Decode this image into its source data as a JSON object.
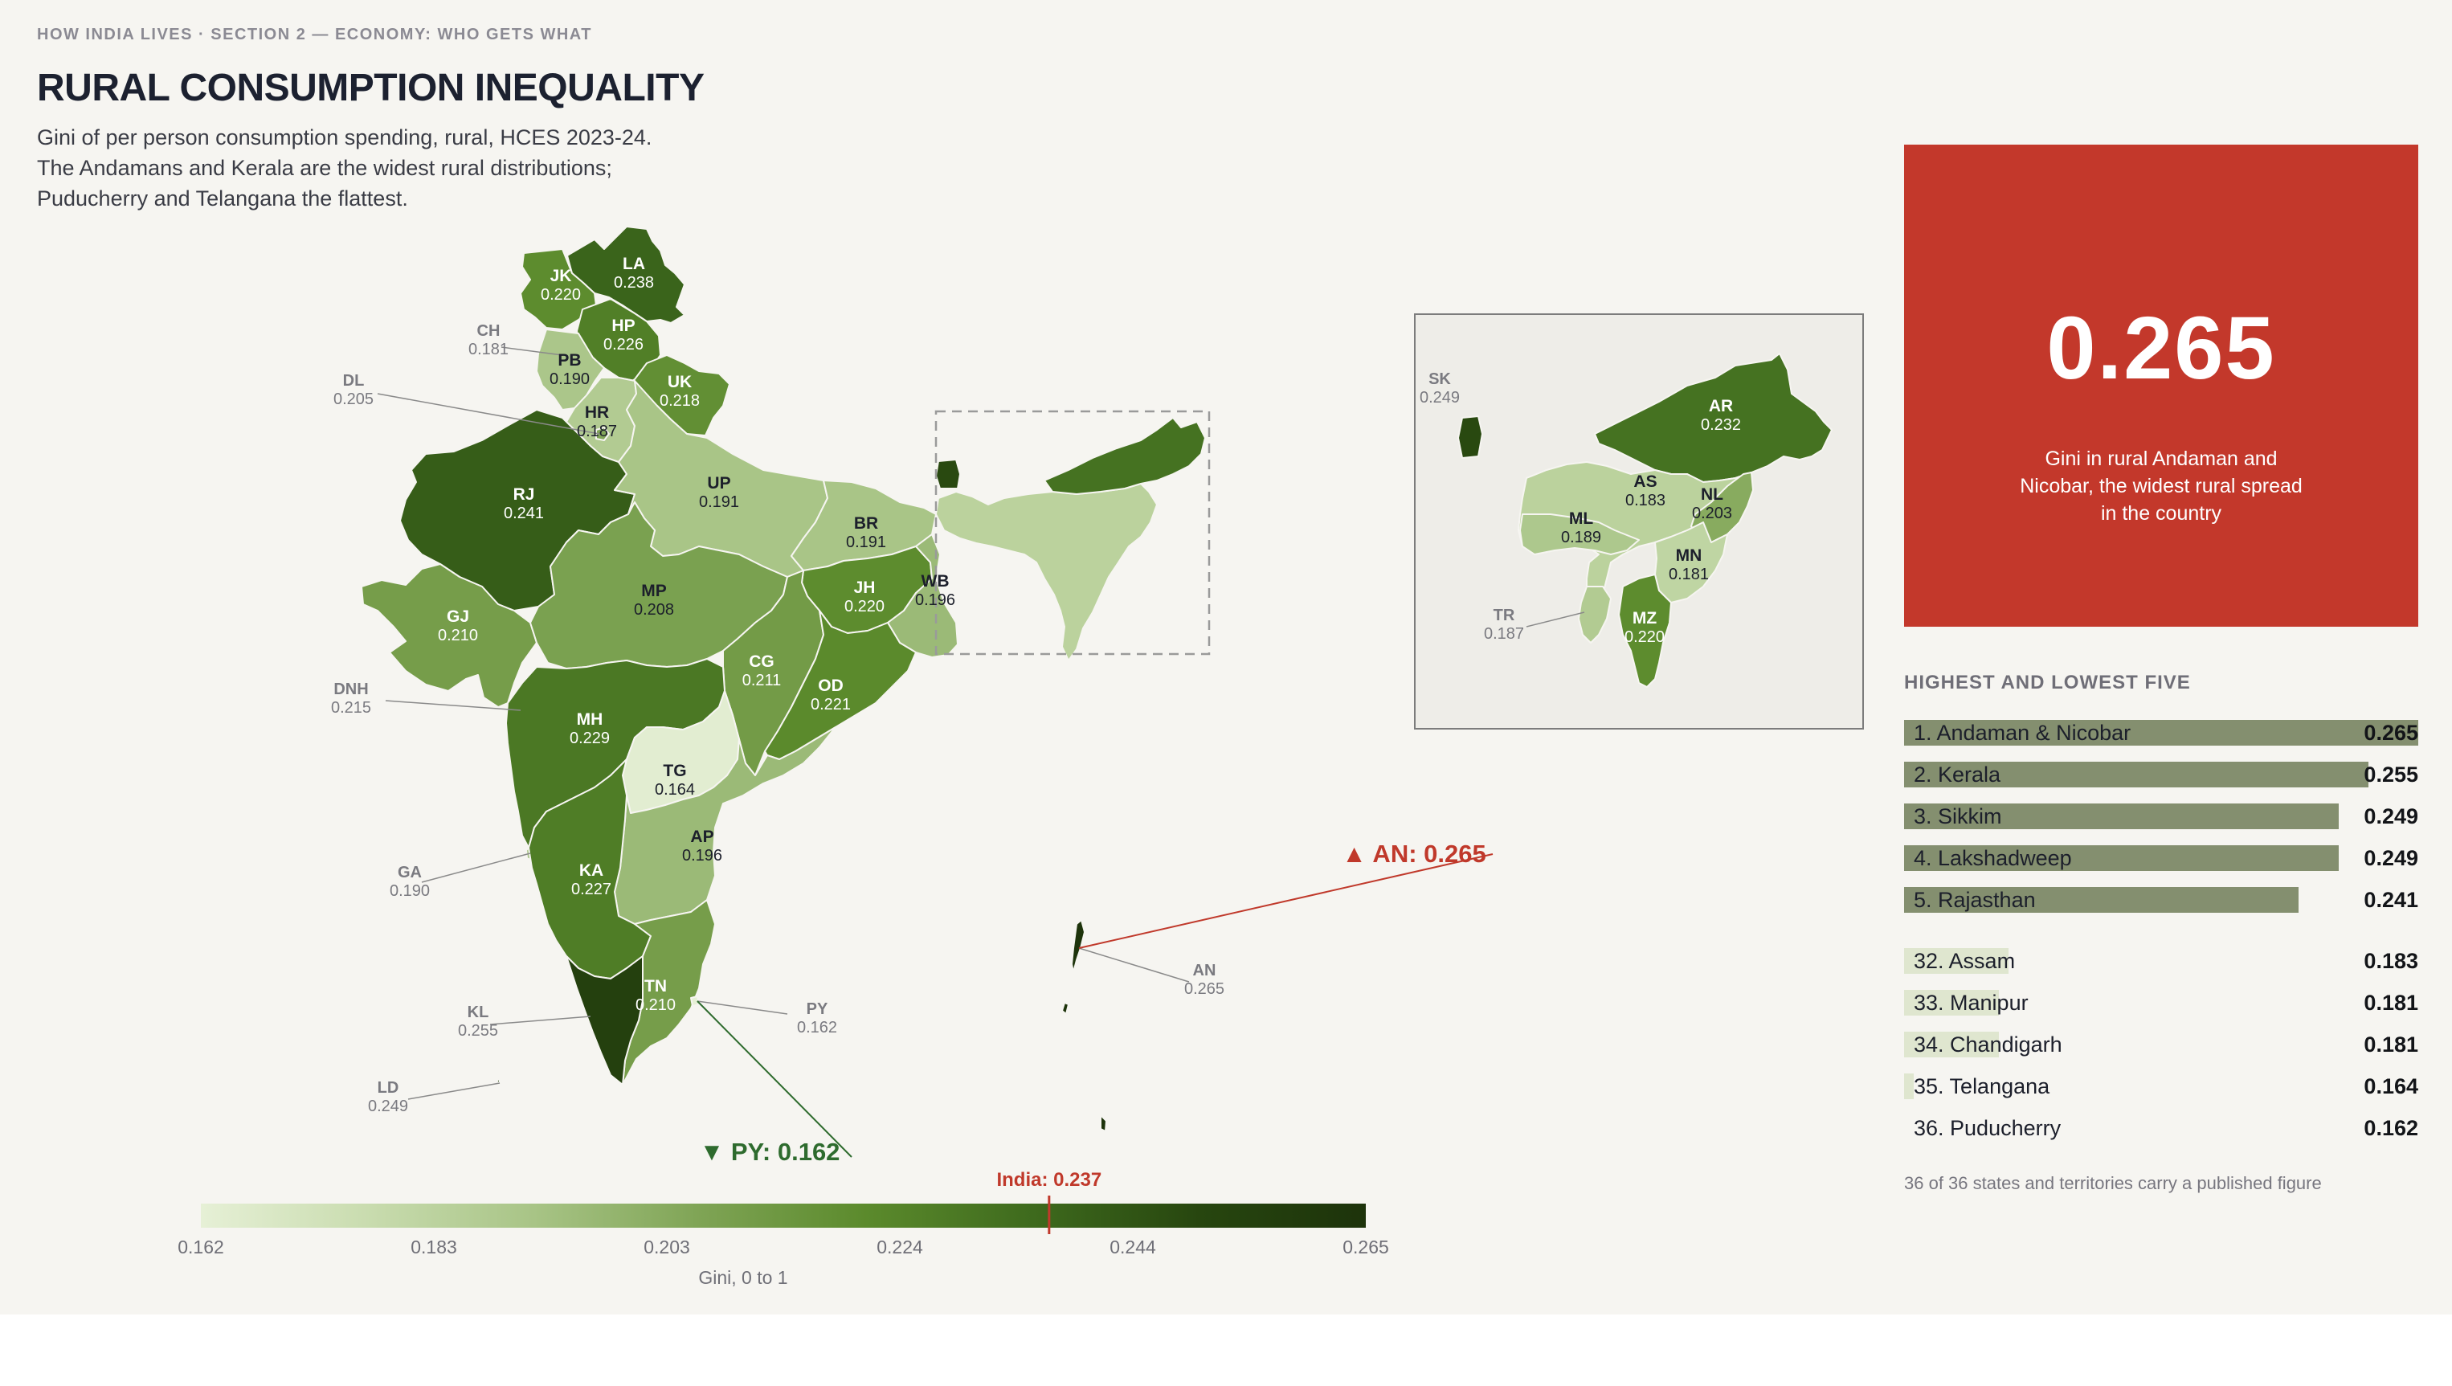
{
  "header": {
    "kicker": "HOW INDIA LIVES · SECTION 2 — ECONOMY: WHO GETS WHAT",
    "title": "RURAL CONSUMPTION INEQUALITY",
    "subtitle_lines": [
      "Gini of per person consumption spending, rural, HCES 2023-24.",
      "The Andamans and Kerala are the widest rural distributions;",
      "Puducherry and Telangana the flattest."
    ]
  },
  "colors": {
    "background": "#f6f5f1",
    "scale": [
      "#e6f0d6",
      "#c9dcaf",
      "#a8c486",
      "#7fa455",
      "#5b8a2c",
      "#3e6a1d",
      "#27460f",
      "#1d330b"
    ],
    "highlight_high": "#c0392b",
    "highlight_low": "#2e6b2e",
    "hero_bg": "#c3382b"
  },
  "map": {
    "states": [
      {
        "code": "LA",
        "name": "Ladakh",
        "gini": 0.238
      },
      {
        "code": "JK",
        "name": "Jammu & Kashmir",
        "gini": 0.22
      },
      {
        "code": "HP",
        "name": "Himachal Pradesh",
        "gini": 0.226
      },
      {
        "code": "PB",
        "name": "Punjab",
        "gini": 0.19
      },
      {
        "code": "CH",
        "name": "Chandigarh",
        "gini": 0.181
      },
      {
        "code": "UK",
        "name": "Uttarakhand",
        "gini": 0.218
      },
      {
        "code": "HR",
        "name": "Haryana",
        "gini": 0.187
      },
      {
        "code": "DL",
        "name": "Delhi",
        "gini": 0.205
      },
      {
        "code": "RJ",
        "name": "Rajasthan",
        "gini": 0.241
      },
      {
        "code": "UP",
        "name": "Uttar Pradesh",
        "gini": 0.191
      },
      {
        "code": "BR",
        "name": "Bihar",
        "gini": 0.191
      },
      {
        "code": "GJ",
        "name": "Gujarat",
        "gini": 0.21
      },
      {
        "code": "MP",
        "name": "Madhya Pradesh",
        "gini": 0.208
      },
      {
        "code": "JH",
        "name": "Jharkhand",
        "gini": 0.22
      },
      {
        "code": "WB",
        "name": "West Bengal",
        "gini": 0.196
      },
      {
        "code": "DNH",
        "name": "Dadra & Nagar Haveli and Daman & Diu",
        "gini": 0.215
      },
      {
        "code": "CG",
        "name": "Chhattisgarh",
        "gini": 0.211
      },
      {
        "code": "OD",
        "name": "Odisha",
        "gini": 0.221
      },
      {
        "code": "MH",
        "name": "Maharashtra",
        "gini": 0.229
      },
      {
        "code": "TG",
        "name": "Telangana",
        "gini": 0.164
      },
      {
        "code": "AP",
        "name": "Andhra Pradesh",
        "gini": 0.196
      },
      {
        "code": "GA",
        "name": "Goa",
        "gini": 0.19
      },
      {
        "code": "KA",
        "name": "Karnataka",
        "gini": 0.227
      },
      {
        "code": "TN",
        "name": "Tamil Nadu",
        "gini": 0.21
      },
      {
        "code": "KL",
        "name": "Kerala",
        "gini": 0.255
      },
      {
        "code": "PY",
        "name": "Puducherry",
        "gini": 0.162
      },
      {
        "code": "LD",
        "name": "Lakshadweep",
        "gini": 0.249
      },
      {
        "code": "AN",
        "name": "Andaman & Nicobar",
        "gini": 0.265
      },
      {
        "code": "SK",
        "name": "Sikkim",
        "gini": 0.249
      },
      {
        "code": "AR",
        "name": "Arunachal Pradesh",
        "gini": 0.232
      },
      {
        "code": "AS",
        "name": "Assam",
        "gini": 0.183
      },
      {
        "code": "NL",
        "name": "Nagaland",
        "gini": 0.203
      },
      {
        "code": "ML",
        "name": "Meghalaya",
        "gini": 0.189
      },
      {
        "code": "MN",
        "name": "Manipur",
        "gini": 0.181
      },
      {
        "code": "TR",
        "name": "Tripura",
        "gini": 0.187
      },
      {
        "code": "MZ",
        "name": "Mizoram",
        "gini": 0.22
      }
    ],
    "callout_high": "▲ AN: 0.265",
    "callout_low": "▼ PY: 0.162",
    "legend": {
      "ticks": [
        "0.162",
        "0.183",
        "0.203",
        "0.224",
        "0.244",
        "0.265"
      ],
      "min": 0.162,
      "max": 0.265,
      "title": "Gini, 0 to 1",
      "national_label": "India: 0.237",
      "national_value": 0.237
    }
  },
  "hero": {
    "value": "0.265",
    "caption": "Gini in rural Andaman and Nicobar, the widest rural spread in the country"
  },
  "ranking": {
    "title": "HIGHEST AND LOWEST FIVE",
    "top": [
      {
        "label": "1. Andaman & Nicobar",
        "value": "0.265",
        "v": 0.265
      },
      {
        "label": "2. Kerala",
        "value": "0.255",
        "v": 0.255
      },
      {
        "label": "3. Sikkim",
        "value": "0.249",
        "v": 0.249
      },
      {
        "label": "4. Lakshadweep",
        "value": "0.249",
        "v": 0.249
      },
      {
        "label": "5. Rajasthan",
        "value": "0.241",
        "v": 0.241
      }
    ],
    "bottom": [
      {
        "label": "32. Assam",
        "value": "0.183",
        "v": 0.183
      },
      {
        "label": "33. Manipur",
        "value": "0.181",
        "v": 0.181
      },
      {
        "label": "34. Chandigarh",
        "value": "0.181",
        "v": 0.181
      },
      {
        "label": "35. Telangana",
        "value": "0.164",
        "v": 0.164
      },
      {
        "label": "36. Puducherry",
        "value": "0.162",
        "v": 0.162
      }
    ]
  },
  "footnote": "36 of 36 states and territories carry a published figure"
}
